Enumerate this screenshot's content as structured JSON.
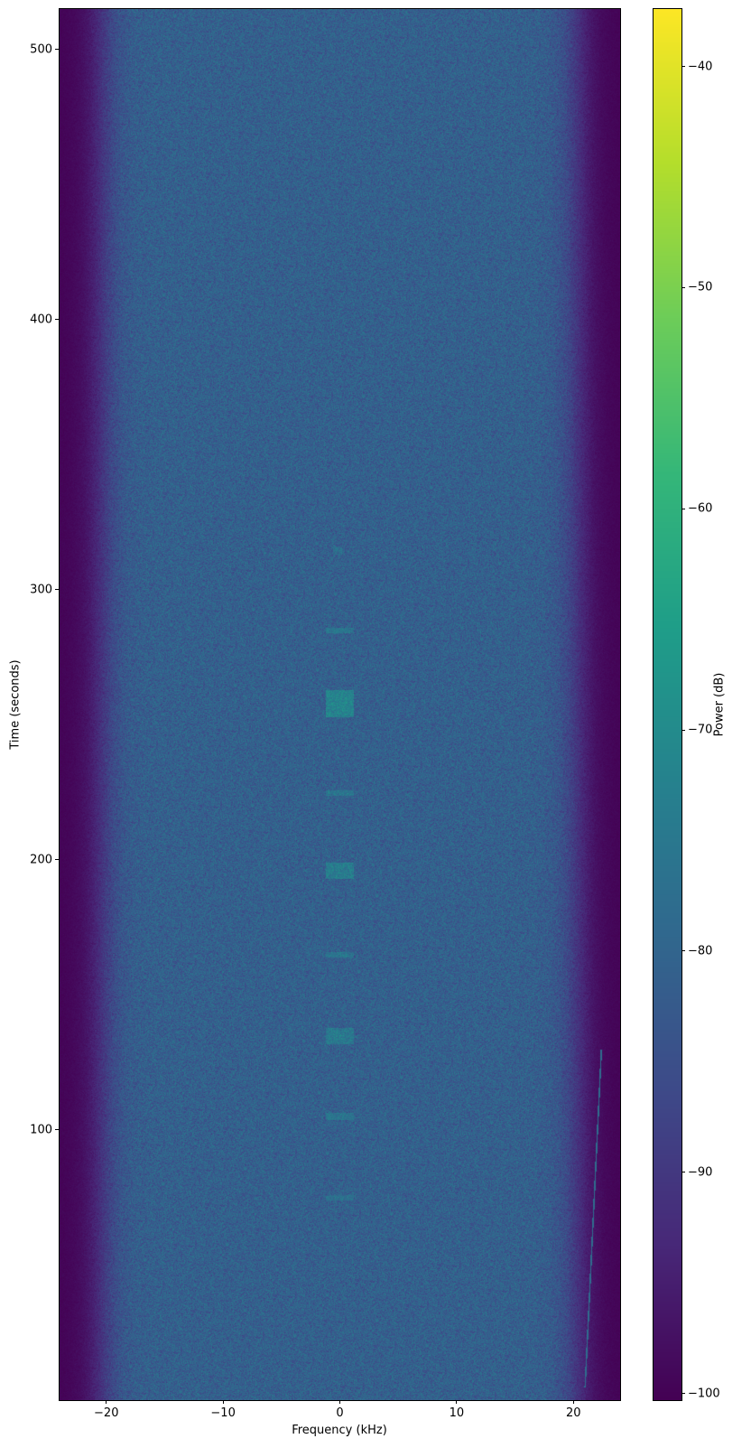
{
  "chart_data": {
    "type": "heatmap",
    "title": "",
    "xlabel": "Frequency (kHz)",
    "ylabel": "Time (seconds)",
    "colorbar_label": "Power (dB)",
    "xlim": [
      -24,
      24
    ],
    "ylim": [
      0,
      515
    ],
    "clim": [
      -100.3,
      -37.4
    ],
    "colormap": "viridis",
    "xticks": [
      -20,
      -10,
      0,
      10,
      20
    ],
    "xtick_labels": [
      "−20",
      "−10",
      "0",
      "10",
      "20"
    ],
    "yticks": [
      100,
      200,
      300,
      400,
      500
    ],
    "ytick_labels": [
      "100",
      "200",
      "300",
      "400",
      "500"
    ],
    "cticks": [
      -40,
      -50,
      -60,
      -70,
      -80,
      -90,
      -100
    ],
    "ctick_labels": [
      "−40",
      "−50",
      "−60",
      "−70",
      "−80",
      "−90",
      "−100"
    ],
    "noise_floor_db": -81,
    "band_edge_rolloff_khz": [
      -22,
      22
    ],
    "out_of_band_db": -100,
    "bursts": [
      {
        "t_start": 74,
        "t_end": 76,
        "f_low": -1.2,
        "f_high": 1.2,
        "db": -78
      },
      {
        "t_start": 104,
        "t_end": 106.5,
        "f_low": -1.2,
        "f_high": 1.2,
        "db": -76
      },
      {
        "t_start": 132,
        "t_end": 138,
        "f_low": -1.2,
        "f_high": 1.2,
        "db": -75
      },
      {
        "t_start": 164,
        "t_end": 166,
        "f_low": -1.2,
        "f_high": 1.2,
        "db": -76
      },
      {
        "t_start": 193,
        "t_end": 199,
        "f_low": -1.2,
        "f_high": 1.2,
        "db": -74
      },
      {
        "t_start": 224,
        "t_end": 226,
        "f_low": -1.2,
        "f_high": 1.2,
        "db": -76
      },
      {
        "t_start": 253,
        "t_end": 263,
        "f_low": -1.2,
        "f_high": 1.2,
        "db": -72
      },
      {
        "t_start": 284,
        "t_end": 286,
        "f_low": -1.2,
        "f_high": 1.2,
        "db": -76
      },
      {
        "t_start": 313,
        "t_end": 316,
        "f_low": -0.6,
        "f_high": 0.2,
        "db": -78
      }
    ],
    "drift_line": {
      "t_start": 5,
      "t_end": 130,
      "f_start": 21.0,
      "f_end": 22.4,
      "db": -78
    }
  }
}
